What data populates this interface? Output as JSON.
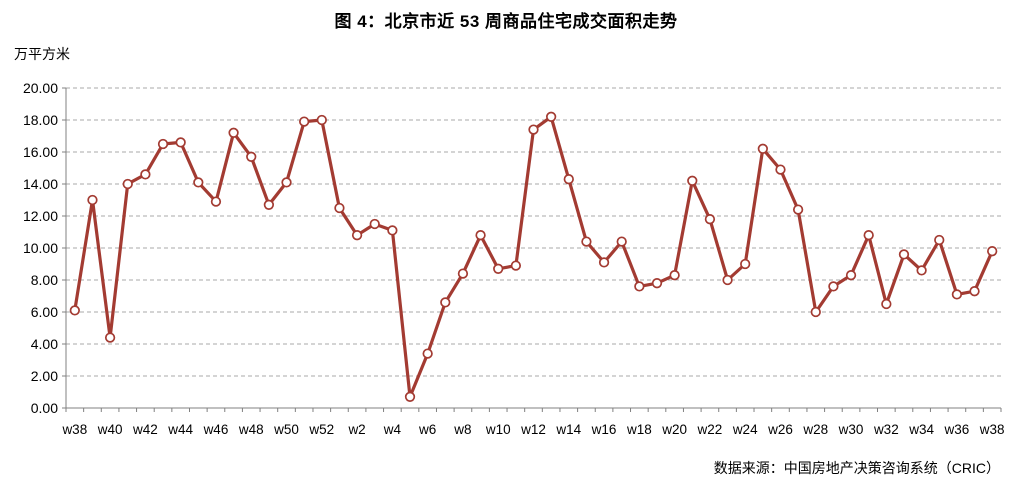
{
  "title": "图 4：北京市近 53 周商品住宅成交面积走势",
  "y_unit_label": "万平方米",
  "source": "数据来源：中国房地产决策咨询系统（CRIC）",
  "colors": {
    "line": "#A33B32",
    "marker_fill": "#FFFFFF",
    "grid": "#A8A8A8",
    "axis": "#808080",
    "text": "#000000"
  },
  "chart_data": {
    "type": "line",
    "title": "图 4：北京市近 53 周商品住宅成交面积走势",
    "ylabel": "万平方米",
    "xlabel": "",
    "ylim": [
      0,
      20
    ],
    "y_tick_step": 2,
    "y_tick_format": "0.00",
    "x_label_every": 2,
    "grid": "horizontal-dashed",
    "legend_position": "none",
    "marker": "open-circle",
    "categories": [
      "w38",
      "w39",
      "w40",
      "w41",
      "w42",
      "w43",
      "w44",
      "w45",
      "w46",
      "w47",
      "w48",
      "w49",
      "w50",
      "w51",
      "w52",
      "w1",
      "w2",
      "w3",
      "w4",
      "w5",
      "w6",
      "w7",
      "w8",
      "w9",
      "w10",
      "w11",
      "w12",
      "w13",
      "w14",
      "w15",
      "w16",
      "w17",
      "w18",
      "w19",
      "w20",
      "w21",
      "w22",
      "w23",
      "w24",
      "w25",
      "w26",
      "w27",
      "w28",
      "w29",
      "w30",
      "w31",
      "w32",
      "w33",
      "w34",
      "w35",
      "w36",
      "w37",
      "w38"
    ],
    "values": [
      6.1,
      13.0,
      4.4,
      14.0,
      14.6,
      16.5,
      16.6,
      14.1,
      12.9,
      17.2,
      15.7,
      12.7,
      14.1,
      17.9,
      18.0,
      12.5,
      10.8,
      11.5,
      11.1,
      0.7,
      3.4,
      6.6,
      8.4,
      10.8,
      8.7,
      8.9,
      17.4,
      18.2,
      14.3,
      10.4,
      9.1,
      10.4,
      7.6,
      7.8,
      8.3,
      14.2,
      11.8,
      8.0,
      9.0,
      16.2,
      14.9,
      12.4,
      6.0,
      7.6,
      8.3,
      10.8,
      6.5,
      9.6,
      8.6,
      10.5,
      7.1,
      7.3,
      9.8
    ]
  }
}
